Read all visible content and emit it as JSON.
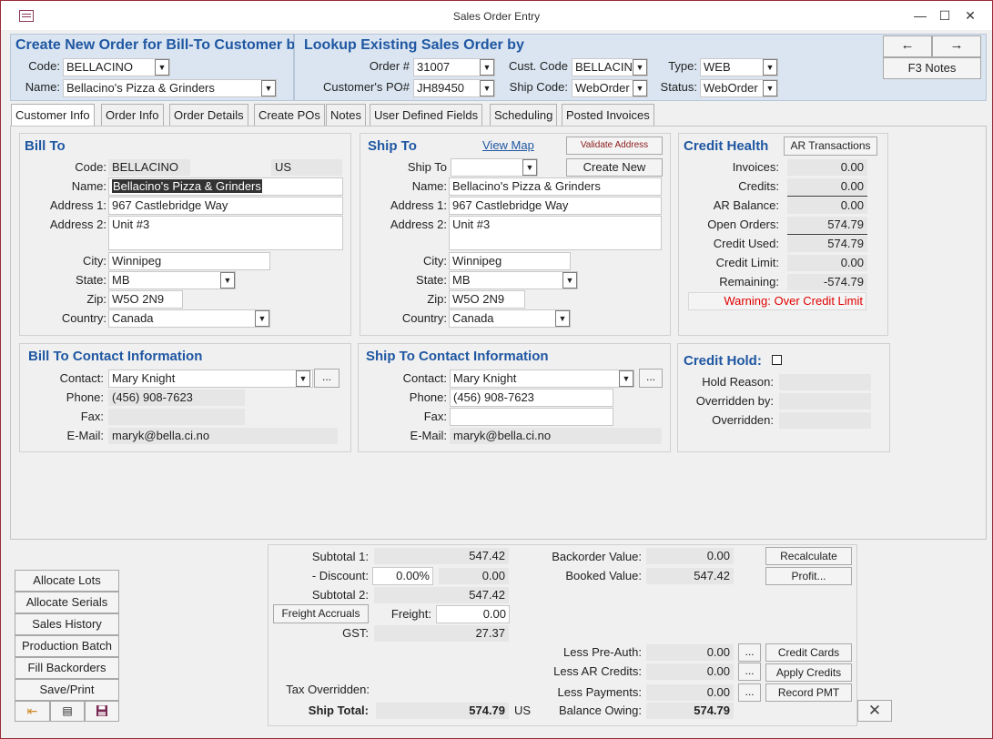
{
  "window": {
    "title": "Sales Order Entry"
  },
  "header": {
    "create_title": "Create New Order for Bill-To Customer by",
    "code_label": "Code:",
    "code_value": "BELLACINO",
    "name_label": "Name:",
    "name_value": "Bellacino's Pizza & Grinders",
    "lookup_title": "Lookup Existing Sales Order by",
    "order_label": "Order #",
    "order_value": "31007",
    "po_label": "Customer's PO#",
    "po_value": "JH89450",
    "custcode_label": "Cust. Code",
    "custcode_value": "BELLACINO",
    "shipcode_label": "Ship Code:",
    "shipcode_value": "WebOrder",
    "type_label": "Type:",
    "type_value": "WEB",
    "status_label": "Status:",
    "status_value": "WebOrder",
    "prev_arrow": "←",
    "next_arrow": "→",
    "notes_label": "F3 Notes"
  },
  "tabs": [
    "Customer Info",
    "Order Info",
    "Order Details",
    "Create POs",
    "Notes",
    "User Defined Fields",
    "Scheduling",
    "Posted Invoices"
  ],
  "billto": {
    "title": "Bill To",
    "code_label": "Code:",
    "code": "BELLACINO",
    "country_code": "US",
    "name_label": "Name:",
    "name": "Bellacino's Pizza & Grinders",
    "addr1_label": "Address 1:",
    "addr1": "967  Castlebridge Way",
    "addr2_label": "Address 2:",
    "addr2": "Unit #3",
    "city_label": "City:",
    "city": "Winnipeg",
    "state_label": "State:",
    "state": "MB",
    "zip_label": "Zip:",
    "zip": "W5O 2N9",
    "country_label": "Country:",
    "country": "Canada"
  },
  "shipto": {
    "title": "Ship To",
    "view_map": "View Map",
    "validate": "Validate Address",
    "create_new": "Create New",
    "shipto_label": "Ship To",
    "shipto_value": "",
    "name_label": "Name:",
    "name": "Bellacino's Pizza & Grinders",
    "addr1_label": "Address 1:",
    "addr1": "967  Castlebridge Way",
    "addr2_label": "Address 2:",
    "addr2": "Unit #3",
    "city_label": "City:",
    "city": "Winnipeg",
    "state_label": "State:",
    "state": "MB",
    "zip_label": "Zip:",
    "zip": "W5O 2N9",
    "country_label": "Country:",
    "country": "Canada"
  },
  "credit": {
    "title": "Credit Health",
    "ar_button": "AR Transactions",
    "rows": [
      {
        "label": "Invoices:",
        "value": "0.00"
      },
      {
        "label": "Credits:",
        "value": "0.00"
      },
      {
        "label": "AR Balance:",
        "value": "0.00"
      },
      {
        "label": "Open Orders:",
        "value": "574.79"
      },
      {
        "label": "Credit Used:",
        "value": "574.79"
      },
      {
        "label": "Credit Limit:",
        "value": "0.00"
      },
      {
        "label": "Remaining:",
        "value": "-574.79"
      }
    ],
    "warning": "Warning: Over Credit Limit",
    "warning_color": "#e00000"
  },
  "billcontact": {
    "title": "Bill To Contact Information",
    "contact_label": "Contact:",
    "contact": "Mary Knight",
    "phone_label": "Phone:",
    "phone": "(456) 908-7623",
    "fax_label": "Fax:",
    "fax": "",
    "email_label": "E-Mail:",
    "email": "maryk@bella.ci.no",
    "more": "..."
  },
  "shipcontact": {
    "title": "Ship To Contact Information",
    "contact_label": "Contact:",
    "contact": "Mary Knight",
    "phone_label": "Phone:",
    "phone": "(456) 908-7623",
    "fax_label": "Fax:",
    "fax": "",
    "email_label": "E-Mail:",
    "email": "maryk@bella.ci.no",
    "more": "..."
  },
  "hold": {
    "title": "Credit Hold:",
    "reason_label": "Hold Reason:",
    "overridden_by_label": "Overridden by:",
    "overridden_label": "Overridden:"
  },
  "actions": [
    "Allocate Lots",
    "Allocate Serials",
    "Sales History",
    "Production Batch",
    "Fill Backorders",
    "Save/Print"
  ],
  "totals": {
    "subtotal1_label": "Subtotal 1:",
    "subtotal1": "547.42",
    "discount_label": "- Discount:",
    "discount_pct": "0.00%",
    "discount": "0.00",
    "subtotal2_label": "Subtotal 2:",
    "subtotal2": "547.42",
    "freight_accruals": "Freight Accruals",
    "freight_label": "Freight:",
    "freight": "0.00",
    "gst_label": "GST:",
    "gst": "27.37",
    "tax_overridden_label": "Tax Overridden:",
    "ship_total_label": "Ship Total:",
    "ship_total": "574.79",
    "currency": "US",
    "backorder_label": "Backorder Value:",
    "backorder": "0.00",
    "booked_label": "Booked Value:",
    "booked": "547.42",
    "preauth_label": "Less Pre-Auth:",
    "preauth": "0.00",
    "arcredits_label": "Less AR Credits:",
    "arcredits": "0.00",
    "payments_label": "Less Payments:",
    "payments": "0.00",
    "balance_label": "Balance Owing:",
    "balance": "574.79",
    "recalculate": "Recalculate",
    "profit": "Profit...",
    "credit_cards": "Credit Cards",
    "apply_credits": "Apply Credits",
    "record_pmt": "Record PMT",
    "more": "...",
    "close": "✕"
  },
  "colors": {
    "accent": "#1f57a2",
    "header_bg": "#dae5f1",
    "window_border": "#9a2b39"
  }
}
